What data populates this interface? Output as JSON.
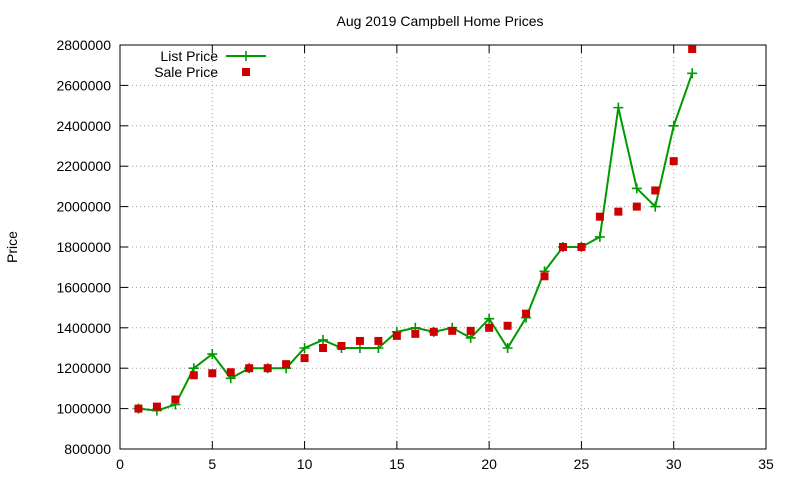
{
  "chart_data": {
    "type": "line",
    "title": "Aug 2019 Campbell Home Prices",
    "xlabel": "",
    "ylabel": "Price",
    "xlim": [
      0,
      35
    ],
    "ylim": [
      800000,
      2800000
    ],
    "xticks": [
      "0",
      "5",
      "10",
      "15",
      "20",
      "25",
      "30",
      "35"
    ],
    "yticks": [
      "800000",
      "1000000",
      "1200000",
      "1400000",
      "1600000",
      "1800000",
      "2000000",
      "2200000",
      "2400000",
      "2600000",
      "2800000"
    ],
    "grid": true,
    "legend_position": "top-left",
    "x": [
      1,
      2,
      3,
      4,
      5,
      6,
      7,
      8,
      9,
      10,
      11,
      12,
      13,
      14,
      15,
      16,
      17,
      18,
      19,
      20,
      21,
      22,
      23,
      24,
      25,
      26,
      27,
      28,
      29,
      30,
      31
    ],
    "series": [
      {
        "name": "List Price",
        "style": "line-with-plus-markers",
        "color": "#009900",
        "values": [
          1000000,
          990000,
          1020000,
          1200000,
          1270000,
          1150000,
          1200000,
          1200000,
          1200000,
          1300000,
          1340000,
          1300000,
          1300000,
          1300000,
          1380000,
          1400000,
          1380000,
          1400000,
          1350000,
          1445000,
          1300000,
          1450000,
          1680000,
          1800000,
          1800000,
          1850000,
          2490000,
          2090000,
          2000000,
          2400000,
          2660000
        ]
      },
      {
        "name": "Sale Price",
        "style": "square-markers",
        "color": "#cc0000",
        "values": [
          1000000,
          1010000,
          1045000,
          1165000,
          1175000,
          1180000,
          1200000,
          1200000,
          1220000,
          1250000,
          1300000,
          1310000,
          1335000,
          1335000,
          1360000,
          1370000,
          1380000,
          1385000,
          1385000,
          1400000,
          1410000,
          1470000,
          1655000,
          1800000,
          1800000,
          1950000,
          1975000,
          2000000,
          2080000,
          2225000,
          2780000
        ]
      }
    ]
  }
}
